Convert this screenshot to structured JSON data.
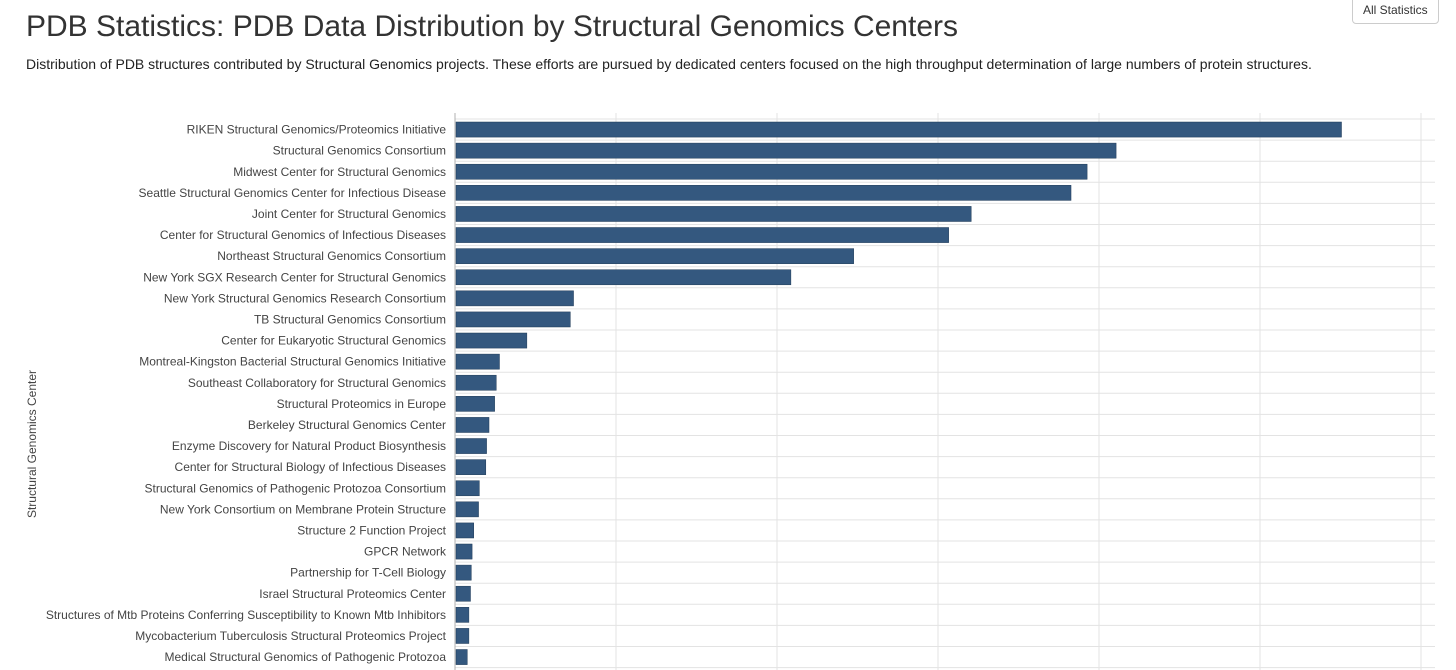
{
  "header": {
    "title": "PDB Statistics: PDB Data Distribution by Structural Genomics Centers",
    "subtitle": "Distribution of PDB structures contributed by Structural Genomics projects. These efforts are pursued by dedicated centers focused on the high throughput determination of large numbers of protein structures.",
    "all_statistics_label": "All Statistics"
  },
  "colors": {
    "bar": "#34587f",
    "grid": "#e3e3e3",
    "axis": "#b0b0b0",
    "label": "#444444"
  },
  "chart_data": {
    "type": "bar",
    "orientation": "horizontal",
    "title": "",
    "ylabel": "Structural Genomics Center",
    "xlabel": "",
    "grid": true,
    "xlim": [
      0,
      6000
    ],
    "x_grid_step": 1000,
    "categories": [
      "RIKEN Structural Genomics/Proteomics Initiative",
      "Structural Genomics Consortium",
      "Midwest Center for Structural Genomics",
      "Seattle Structural Genomics Center for Infectious Disease",
      "Joint Center for Structural Genomics",
      "Center for Structural Genomics of Infectious Diseases",
      "Northeast Structural Genomics Consortium",
      "New York SGX Research Center for Structural Genomics",
      "New York Structural Genomics Research Consortium",
      "TB Structural Genomics Consortium",
      "Center for Eukaryotic Structural Genomics",
      "Montreal-Kingston Bacterial Structural Genomics Initiative",
      "Southeast Collaboratory for Structural Genomics",
      "Structural Proteomics in Europe",
      "Berkeley Structural Genomics Center",
      "Enzyme Discovery for Natural Product Biosynthesis",
      "Center for Structural Biology of Infectious Diseases",
      "Structural Genomics of Pathogenic Protozoa Consortium",
      "New York Consortium on Membrane Protein Structure",
      "Structure 2 Function Project",
      "GPCR Network",
      "Partnership for T-Cell Biology",
      "Israel Structural Proteomics Center",
      "Structures of Mtb Proteins Conferring Susceptibility to Known Mtb Inhibitors",
      "Mycobacterium Tuberculosis Structural Proteomics Project",
      "Medical Structural Genomics of Pathogenic Protozoa"
    ],
    "values": [
      5500,
      4100,
      3920,
      3820,
      3200,
      3060,
      2470,
      2080,
      730,
      710,
      440,
      270,
      250,
      240,
      205,
      190,
      185,
      145,
      140,
      110,
      100,
      95,
      90,
      80,
      80,
      70
    ]
  }
}
